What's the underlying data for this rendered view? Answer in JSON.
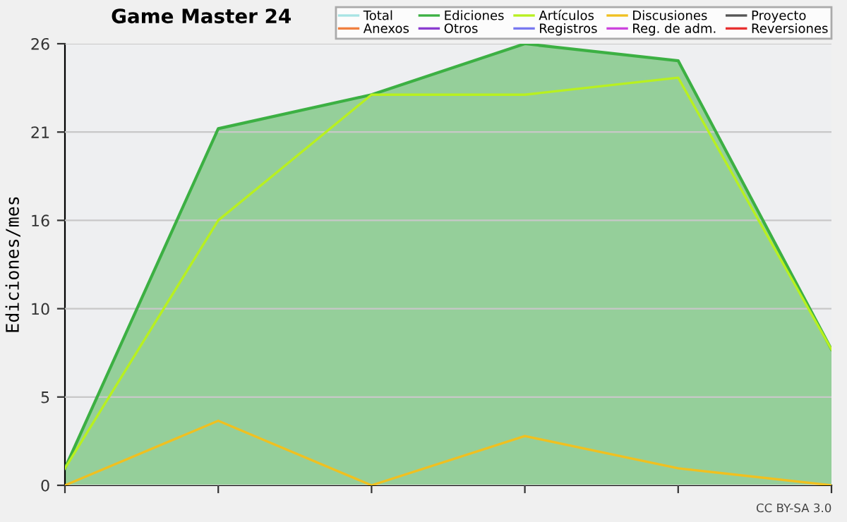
{
  "chart_data": {
    "type": "line",
    "title": "Game Master 24",
    "ylabel": "Ediciones/mes",
    "categories": [
      null,
      null,
      null,
      null,
      null,
      null
    ],
    "series": [
      {
        "name": "Total",
        "color": "#a8e4e4",
        "values": [
          null,
          null,
          null,
          null,
          null,
          null
        ]
      },
      {
        "name": "Anexos",
        "color": "#f08040",
        "values": [
          null,
          null,
          null,
          null,
          null,
          null
        ]
      },
      {
        "name": "Ediciones",
        "color": "#3cb043",
        "type": "area",
        "values": [
          1.0,
          21.0,
          23.0,
          26.0,
          25.0,
          8.0
        ]
      },
      {
        "name": "Otros",
        "color": "#8a3cd0",
        "values": [
          null,
          null,
          null,
          null,
          null,
          null
        ]
      },
      {
        "name": "Artículos",
        "color": "#b8f020",
        "values": [
          1.0,
          15.6,
          23.0,
          23.0,
          24.0,
          8.0
        ]
      },
      {
        "name": "Registros",
        "color": "#7878f0",
        "values": [
          null,
          null,
          null,
          null,
          null,
          null
        ]
      },
      {
        "name": "Discusiones",
        "color": "#f0c020",
        "values": [
          0,
          3.8,
          0,
          2.9,
          1.0,
          0
        ]
      },
      {
        "name": "Reg. de adm.",
        "color": "#cc44dd",
        "values": [
          null,
          null,
          null,
          null,
          null,
          null
        ]
      },
      {
        "name": "Proyecto",
        "color": "#555555",
        "values": [
          null,
          null,
          null,
          null,
          null,
          null
        ]
      },
      {
        "name": "Reversiones",
        "color": "#e83030",
        "values": [
          null,
          null,
          null,
          null,
          null,
          null
        ]
      }
    ],
    "ylim": [
      0,
      26
    ],
    "yticks": [
      0,
      {
        "value": 5.2,
        "label": "5"
      },
      {
        "value": 10.4,
        "label": "10"
      },
      {
        "value": 15.6,
        "label": "16"
      },
      {
        "value": 20.8,
        "label": "21"
      },
      26
    ],
    "grid": "y",
    "legend": "top right",
    "tick_labels": "y",
    "annotations": [
      "CC BY-SA 3.0"
    ]
  }
}
